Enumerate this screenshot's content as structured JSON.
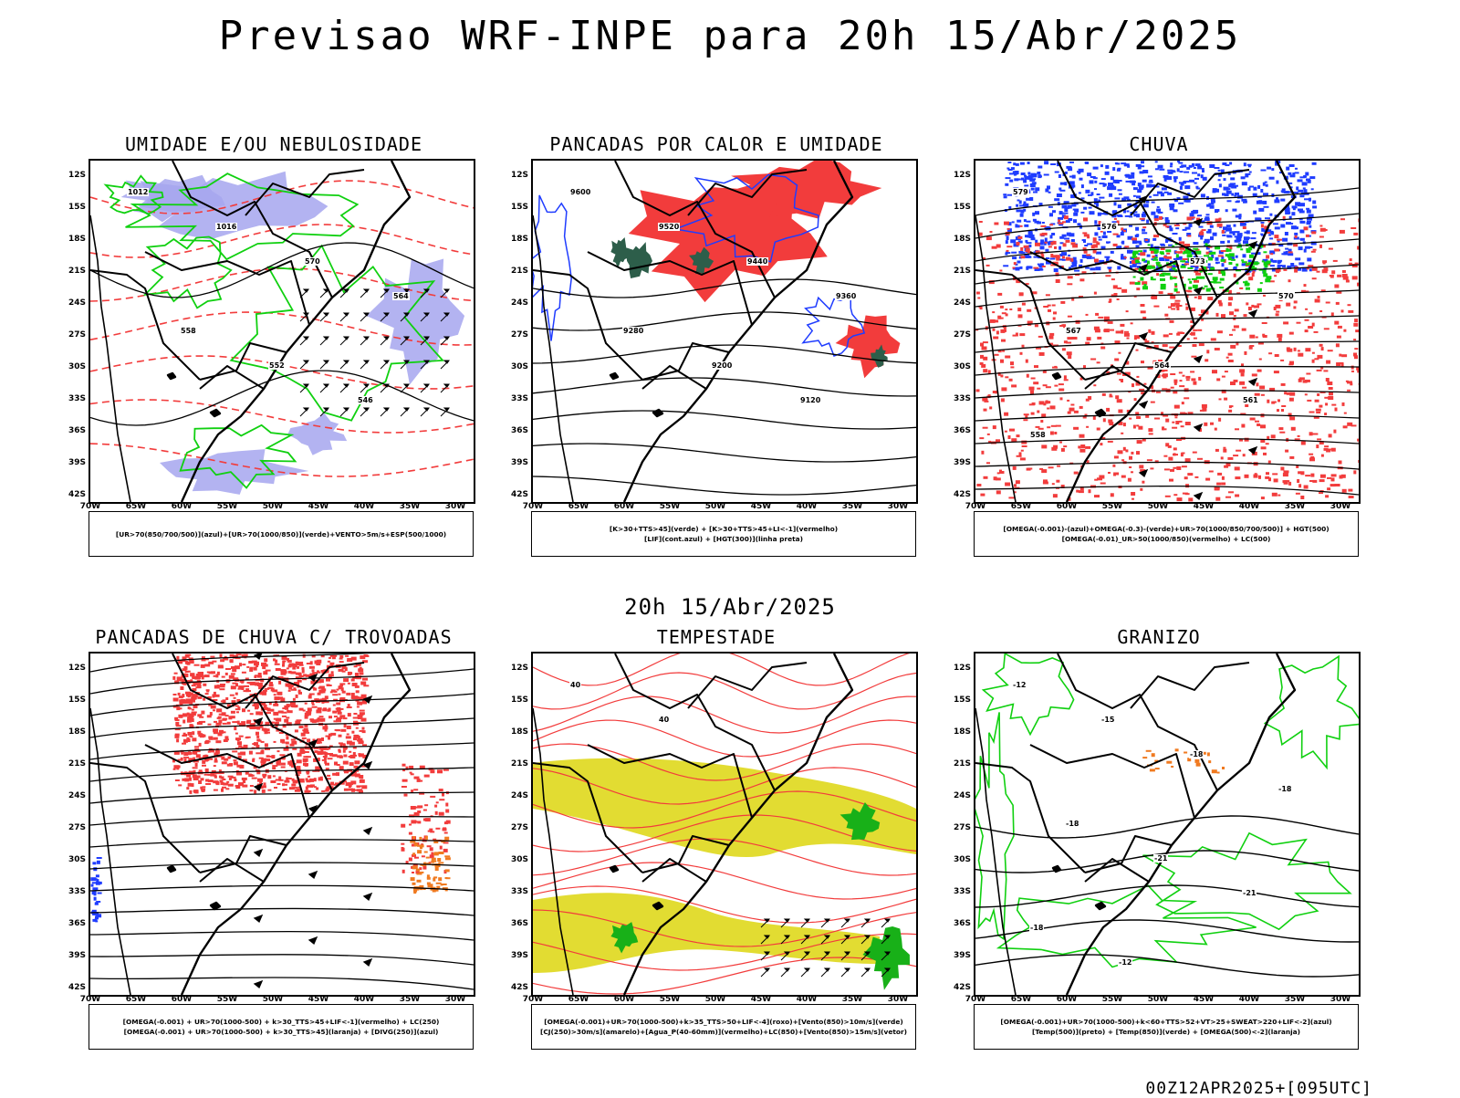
{
  "header": {
    "title": "Previsao WRF-INPE  para 20h 15/Abr/2025",
    "mid_title": "20h 15/Abr/2025",
    "footer_stamp": "00Z12APR2025+[095UTC]"
  },
  "axes": {
    "lat_labels": [
      "12S",
      "15S",
      "18S",
      "21S",
      "24S",
      "27S",
      "30S",
      "33S",
      "36S",
      "39S",
      "42S"
    ],
    "lon_labels": [
      "70W",
      "65W",
      "60W",
      "55W",
      "50W",
      "45W",
      "40W",
      "35W",
      "30W"
    ]
  },
  "panels": [
    {
      "id": "umidade",
      "title": "UMIDADE E/OU NEBULOSIDADE",
      "legend": [
        "[UR>70(850/700/500)](azul)+[UR>70(1000/850)](verde)+VENTO>5m/s+ESP(500/1000)"
      ],
      "contour_labels": [
        "1012",
        "1016",
        "570",
        "564",
        "558",
        "552",
        "546"
      ]
    },
    {
      "id": "pancadas-calor",
      "title": "PANCADAS POR CALOR E UMIDADE",
      "legend": [
        "[K>30+TTS>45](verde) + [K>30+TTS>45+LI<-1](vermelho)",
        "[LIF](cont.azul) + [HGT(300)](linha preta)"
      ],
      "contour_labels": [
        "9600",
        "9520",
        "9440",
        "9360",
        "9280",
        "9200",
        "9120"
      ]
    },
    {
      "id": "chuva",
      "title": "CHUVA",
      "legend": [
        "[OMEGA(-0.001)-(azul)+OMEGA(-0.3)-(verde)+UR>70(1000/850/700/500)] + HGT(500)",
        "[OMEGA(-0.01)_UR>50(1000/850)(vermelho) + LC(500)"
      ],
      "contour_labels": [
        "579",
        "576",
        "573",
        "570",
        "567",
        "564",
        "561",
        "558"
      ]
    },
    {
      "id": "pancadas-trovoadas",
      "title": "PANCADAS DE CHUVA C/ TROVOADAS",
      "legend": [
        "[OMEGA(-0.001) + UR>70(1000-500) + k>30_TTS>45+LIF<-1](vermelho) + LC(250)",
        "[OMEGA(-0.001) + UR>70(1000-500) + k>30_TTS>45](laranja) + [DIVG(250)](azul)"
      ],
      "contour_labels": []
    },
    {
      "id": "tempestade",
      "title": "TEMPESTADE",
      "legend": [
        "[OMEGA(-0.001)+UR>70(1000-500)+k>35_TTS>50+LIF<-4](roxo)+[Vento(850)>10m/s](verde)",
        "[CJ(250)>30m/s](amarelo)+[Agua_P(40-60mm)](vermelho)+LC(850)+[Vento(850)>15m/s](vetor)"
      ],
      "contour_labels": [
        "40",
        "40"
      ]
    },
    {
      "id": "granizo",
      "title": "GRANIZO",
      "legend": [
        "[OMEGA(-0.001)+UR>70(1000-500)+k<60+TTS>52+VT>25+SWEAT>220+LIF<-2](azul)",
        "[Temp(500)](preto) + [Temp(850)](verde) + [OMEGA(500)<-2](laranja)"
      ],
      "contour_labels": [
        "-12",
        "-15",
        "-18",
        "-18",
        "-18",
        "-21",
        "-21",
        "-18",
        "-12"
      ]
    }
  ],
  "colors": {
    "blue_fill": "#a6a6ee",
    "blue_line": "#1f3cff",
    "green_line": "#10d010",
    "red_fill": "#f23c3c",
    "dark_green_fill": "#2d5e4a",
    "orange_fill": "#f07a20",
    "yellow_fill": "#e2dc32",
    "red_line": "#f23c3c"
  }
}
